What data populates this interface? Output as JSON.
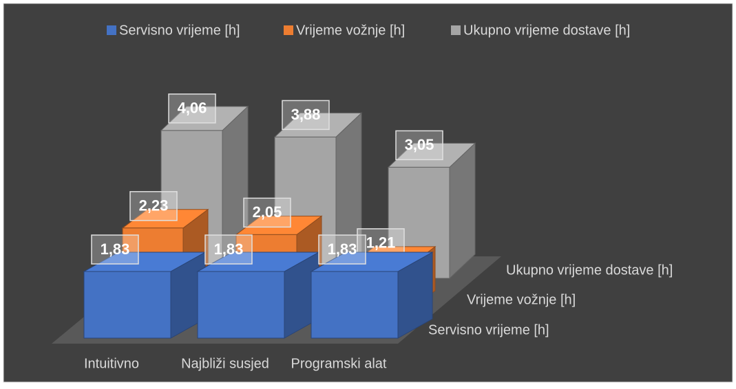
{
  "chart_data": {
    "type": "bar3d",
    "categories": [
      "Intuitivno",
      "Najbliži susjed",
      "Programski alat"
    ],
    "series": [
      {
        "name": "Servisno vrijeme [h]",
        "color": "#4472c4",
        "values": [
          1.83,
          1.83,
          1.83
        ],
        "value_labels": [
          "1,83",
          "1,83",
          "1,83"
        ]
      },
      {
        "name": "Vrijeme vožnje [h]",
        "color": "#ed7d31",
        "values": [
          2.23,
          2.05,
          1.21
        ],
        "value_labels": [
          "2,23",
          "2,05",
          "1,21"
        ]
      },
      {
        "name": "Ukupno vrijeme dostave [h]",
        "color": "#a5a5a5",
        "values": [
          4.06,
          3.88,
          3.05
        ],
        "value_labels": [
          "4,06",
          "3,88",
          "3,05"
        ]
      }
    ],
    "legend": "top"
  }
}
